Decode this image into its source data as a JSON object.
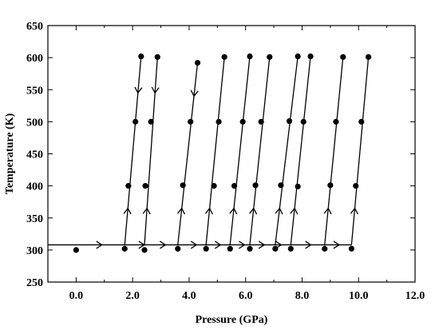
{
  "chart_data": {
    "type": "scatter",
    "xlabel": "Pressure (GPa)",
    "ylabel": "Temperature (K)",
    "xlim": [
      -1,
      12
    ],
    "ylim": [
      250,
      650
    ],
    "xticks": [
      0,
      2,
      4,
      6,
      8,
      10,
      12
    ],
    "xtick_labels": [
      "0.0",
      "2.0",
      "4.0",
      "6.0",
      "8.0",
      "10.0",
      "12.0"
    ],
    "yticks": [
      250,
      300,
      350,
      400,
      450,
      500,
      550,
      600,
      650
    ],
    "ytick_labels": [
      "250",
      "300",
      "350",
      "400",
      "450",
      "500",
      "550",
      "600",
      "650"
    ],
    "grid": false,
    "horizontal_path": {
      "y": 308,
      "x": [
        -1,
        9.75
      ],
      "arrows_at_x": [
        0.8,
        2.3,
        3.05,
        4.15,
        5.0,
        5.85,
        6.55,
        7.15,
        8.2,
        9.2
      ]
    },
    "points": [
      {
        "x": 0.0,
        "y": 300
      },
      {
        "x": 1.72,
        "y": 302
      },
      {
        "x": 1.85,
        "y": 400
      },
      {
        "x": 2.1,
        "y": 500
      },
      {
        "x": 2.3,
        "y": 602
      },
      {
        "x": 2.42,
        "y": 300
      },
      {
        "x": 2.45,
        "y": 400
      },
      {
        "x": 2.65,
        "y": 500
      },
      {
        "x": 2.88,
        "y": 601
      },
      {
        "x": 3.6,
        "y": 302
      },
      {
        "x": 3.78,
        "y": 401
      },
      {
        "x": 4.05,
        "y": 500
      },
      {
        "x": 4.3,
        "y": 592
      },
      {
        "x": 4.6,
        "y": 302
      },
      {
        "x": 4.88,
        "y": 400
      },
      {
        "x": 5.05,
        "y": 500
      },
      {
        "x": 5.25,
        "y": 601
      },
      {
        "x": 5.45,
        "y": 302
      },
      {
        "x": 5.6,
        "y": 400
      },
      {
        "x": 5.9,
        "y": 500
      },
      {
        "x": 6.15,
        "y": 602
      },
      {
        "x": 6.15,
        "y": 302
      },
      {
        "x": 6.35,
        "y": 401
      },
      {
        "x": 6.55,
        "y": 500
      },
      {
        "x": 6.85,
        "y": 601
      },
      {
        "x": 7.05,
        "y": 302
      },
      {
        "x": 7.25,
        "y": 401
      },
      {
        "x": 7.55,
        "y": 501
      },
      {
        "x": 7.85,
        "y": 602
      },
      {
        "x": 7.6,
        "y": 302
      },
      {
        "x": 7.85,
        "y": 399
      },
      {
        "x": 8.05,
        "y": 500
      },
      {
        "x": 8.3,
        "y": 602
      },
      {
        "x": 8.8,
        "y": 302
      },
      {
        "x": 9.0,
        "y": 401
      },
      {
        "x": 9.2,
        "y": 500
      },
      {
        "x": 9.45,
        "y": 601
      },
      {
        "x": 9.75,
        "y": 302
      },
      {
        "x": 9.9,
        "y": 400
      },
      {
        "x": 10.1,
        "y": 500
      },
      {
        "x": 10.35,
        "y": 601
      }
    ],
    "isochores": [
      {
        "from": [
          1.72,
          308
        ],
        "to": [
          2.3,
          602
        ],
        "up_arrows_at_y": [
          365
        ],
        "down_arrows_at_y": [
          545
        ]
      },
      {
        "from": [
          2.42,
          308
        ],
        "to": [
          2.88,
          601
        ],
        "up_arrows_at_y": [
          365
        ],
        "down_arrows_at_y": [
          545
        ]
      },
      {
        "from": [
          3.6,
          308
        ],
        "to": [
          4.3,
          592
        ],
        "up_arrows_at_y": [
          365
        ],
        "down_arrows_at_y": [
          540
        ]
      },
      {
        "from": [
          4.6,
          308
        ],
        "to": [
          5.25,
          601
        ],
        "up_arrows_at_y": [
          365
        ],
        "down_arrows_at_y": []
      },
      {
        "from": [
          5.45,
          308
        ],
        "to": [
          6.15,
          602
        ],
        "up_arrows_at_y": [
          365
        ],
        "down_arrows_at_y": []
      },
      {
        "from": [
          6.15,
          308
        ],
        "to": [
          6.85,
          601
        ],
        "up_arrows_at_y": [
          365
        ],
        "down_arrows_at_y": []
      },
      {
        "from": [
          7.05,
          308
        ],
        "to": [
          7.85,
          602
        ],
        "up_arrows_at_y": [
          365
        ],
        "down_arrows_at_y": []
      },
      {
        "from": [
          7.6,
          308
        ],
        "to": [
          8.3,
          602
        ],
        "up_arrows_at_y": [
          365
        ],
        "down_arrows_at_y": []
      },
      {
        "from": [
          8.8,
          308
        ],
        "to": [
          9.45,
          601
        ],
        "up_arrows_at_y": [
          365
        ],
        "down_arrows_at_y": []
      },
      {
        "from": [
          9.75,
          308
        ],
        "to": [
          10.35,
          601
        ],
        "up_arrows_at_y": [
          365
        ],
        "down_arrows_at_y": []
      }
    ]
  }
}
